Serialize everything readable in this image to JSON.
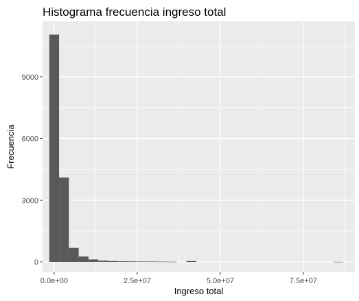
{
  "chart_data": {
    "type": "bar",
    "title": "Histograma frecuencia ingreso total",
    "xlabel": "Ingreso total",
    "ylabel": "Frecuencia",
    "xlim": [
      -3500000,
      90500000
    ],
    "ylim": [
      -500,
      11700
    ],
    "x_ticks": [
      {
        "value": 0,
        "label": "0.0e+00"
      },
      {
        "value": 25000000,
        "label": "2.5e+07"
      },
      {
        "value": 50000000,
        "label": "5.0e+07"
      },
      {
        "value": 75000000,
        "label": "7.5e+07"
      }
    ],
    "y_ticks": [
      {
        "value": 0,
        "label": "0"
      },
      {
        "value": 3000,
        "label": "3000"
      },
      {
        "value": 6000,
        "label": "6000"
      },
      {
        "value": 9000,
        "label": "9000"
      }
    ],
    "bin_width": 2950000,
    "bin_start": -1475000,
    "values": [
      11050,
      4100,
      680,
      260,
      120,
      60,
      40,
      30,
      25,
      20,
      20,
      15,
      10,
      0,
      40,
      0,
      0,
      0,
      0,
      0,
      0,
      0,
      0,
      0,
      0,
      0,
      0,
      0,
      0,
      5
    ],
    "bar_color": "#595959",
    "panel_background": "#ebebeb",
    "grid": true,
    "legend": "none"
  }
}
